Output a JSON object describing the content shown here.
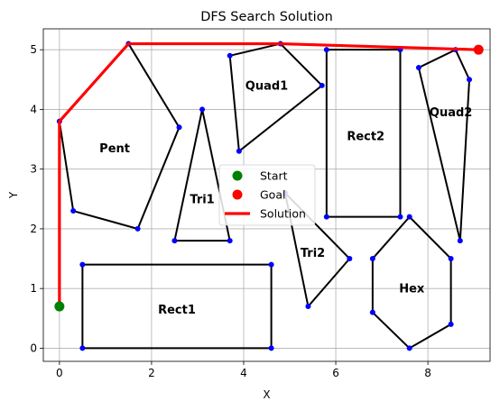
{
  "chart_data": {
    "type": "line",
    "title": "DFS Search Solution",
    "xlabel": "X",
    "ylabel": "Y",
    "xlim": [
      -0.35,
      9.35
    ],
    "ylim": [
      -0.22,
      5.35
    ],
    "xticks": [
      0,
      2,
      4,
      6,
      8
    ],
    "yticks": [
      0,
      1,
      2,
      3,
      4,
      5
    ],
    "grid": true,
    "legend_position": "center",
    "legend": [
      "Start",
      "Goal",
      "Solution"
    ],
    "start": {
      "name": "Start",
      "x": 0,
      "y": 0.7,
      "color": "#008000"
    },
    "goal": {
      "name": "Goal",
      "x": 9.1,
      "y": 5.0,
      "color": "#ff0000"
    },
    "solution": {
      "name": "Solution",
      "color": "#ff0000",
      "points": [
        [
          0,
          0.7
        ],
        [
          0,
          3.8
        ],
        [
          1.5,
          5.1
        ],
        [
          4.8,
          5.1
        ],
        [
          9.1,
          5.0
        ]
      ]
    },
    "obstacles": [
      {
        "label": "Pent",
        "label_pos": [
          1.2,
          3.35
        ],
        "points": [
          [
            0,
            3.8
          ],
          [
            1.5,
            5.1
          ],
          [
            2.6,
            3.7
          ],
          [
            1.7,
            2.0
          ],
          [
            0.3,
            2.3
          ]
        ]
      },
      {
        "label": "Quad1",
        "label_pos": [
          4.5,
          4.4
        ],
        "points": [
          [
            3.7,
            4.9
          ],
          [
            4.8,
            5.1
          ],
          [
            5.7,
            4.4
          ],
          [
            3.9,
            3.3
          ]
        ]
      },
      {
        "label": "Tri1",
        "label_pos": [
          3.1,
          2.5
        ],
        "points": [
          [
            3.1,
            4.0
          ],
          [
            3.7,
            1.8
          ],
          [
            2.5,
            1.8
          ]
        ]
      },
      {
        "label": "Rect2",
        "label_pos": [
          6.65,
          3.55
        ],
        "points": [
          [
            5.8,
            5.0
          ],
          [
            7.4,
            5.0
          ],
          [
            7.4,
            2.2
          ],
          [
            5.8,
            2.2
          ]
        ]
      },
      {
        "label": "Quad2",
        "label_pos": [
          8.5,
          3.95
        ],
        "points": [
          [
            7.8,
            4.7
          ],
          [
            8.6,
            5.0
          ],
          [
            8.9,
            4.5
          ],
          [
            8.7,
            1.8
          ]
        ]
      },
      {
        "label": "Tri2",
        "label_pos": [
          5.5,
          1.6
        ],
        "points": [
          [
            4.9,
            2.6
          ],
          [
            6.3,
            1.5
          ],
          [
            5.4,
            0.7
          ]
        ]
      },
      {
        "label": "Hex",
        "label_pos": [
          7.65,
          1.0
        ],
        "points": [
          [
            7.6,
            2.2
          ],
          [
            8.5,
            1.5
          ],
          [
            8.5,
            0.4
          ],
          [
            7.6,
            0.0
          ],
          [
            6.8,
            0.6
          ],
          [
            6.8,
            1.5
          ]
        ]
      },
      {
        "label": "Rect1",
        "label_pos": [
          2.55,
          0.65
        ],
        "points": [
          [
            0.5,
            1.4
          ],
          [
            4.6,
            1.4
          ],
          [
            4.6,
            0.0
          ],
          [
            0.5,
            0.0
          ]
        ]
      }
    ]
  }
}
